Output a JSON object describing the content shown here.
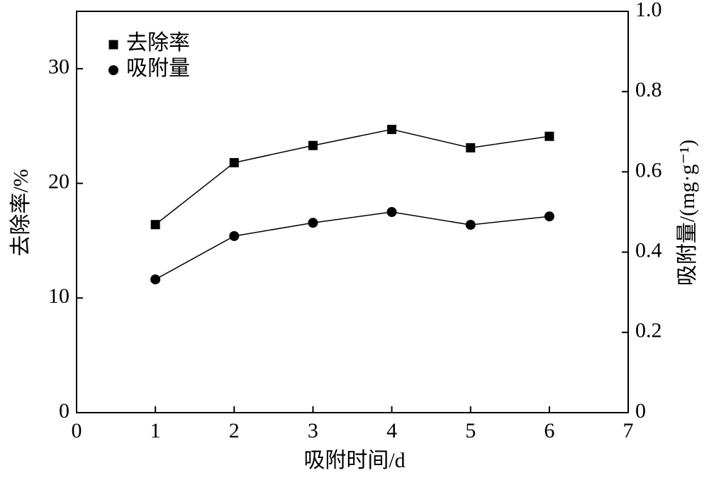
{
  "chart_data": {
    "type": "line",
    "x_label": "吸附时间/d",
    "y_label": "去除率/%",
    "y2_label": "吸附量/(mg·g⁻¹)",
    "x": [
      1,
      2,
      3,
      4,
      5,
      6
    ],
    "xlim": [
      0,
      7
    ],
    "xticks": [
      0,
      1,
      2,
      3,
      4,
      5,
      6,
      7
    ],
    "ylim": [
      0,
      35
    ],
    "yticks": [
      0,
      10,
      20,
      30
    ],
    "y2lim": [
      0,
      1
    ],
    "y2ticks": [
      0,
      0.2,
      0.4,
      0.6,
      0.8,
      {
        "value": 1,
        "label": "1.0"
      }
    ],
    "legend": "upper-left",
    "series": [
      {
        "name": "去除率",
        "color": "#000000",
        "marker": "square",
        "values": [
          16.4,
          21.8,
          23.3,
          24.7,
          23.1,
          24.1
        ]
      },
      {
        "name": "吸附量",
        "color": "#000000",
        "marker": "circle",
        "axis": "y2",
        "values": [
          0.332,
          0.44,
          0.473,
          0.5,
          0.468,
          0.489
        ]
      }
    ]
  }
}
